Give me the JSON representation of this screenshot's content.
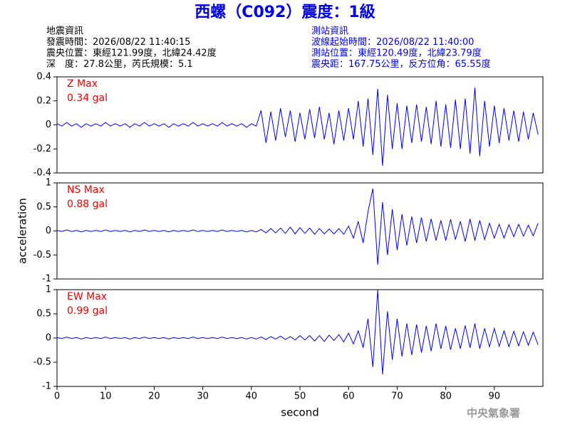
{
  "title": "西螺（C092）震度：1級",
  "event_info": [
    "地震資訊",
    "發震時間：2026/08/22 11:40:15",
    "震央位置：東經121.99度，北緯24.42度",
    "深　度：27.8公里，芮氏規模：5.1"
  ],
  "station_info": [
    "測站資訊",
    "波線起始時間：2026/08/22 11:40:00",
    "測站位置：東經120.49度，北緯23.79度",
    "震央距：167.75公里，反方位角：65.55度"
  ],
  "footer": "中央氣象署",
  "chart_data": [
    {
      "type": "line",
      "annotations": [
        "Z Max",
        "0.34 gal"
      ],
      "annotation_color": "#ee0000",
      "color": "#0000ee",
      "xlim": [
        0,
        100
      ],
      "ylim": [
        -0.4,
        0.4
      ],
      "yticks": [
        0.4,
        0.2,
        0,
        -0.2,
        -0.4
      ],
      "x": [
        0,
        1,
        2,
        3,
        4,
        5,
        6,
        7,
        8,
        9,
        10,
        11,
        12,
        13,
        14,
        15,
        16,
        17,
        18,
        19,
        20,
        21,
        22,
        23,
        24,
        25,
        26,
        27,
        28,
        29,
        30,
        31,
        32,
        33,
        34,
        35,
        36,
        37,
        38,
        39,
        40,
        41,
        42,
        43,
        44,
        45,
        46,
        47,
        48,
        49,
        50,
        51,
        52,
        53,
        54,
        55,
        56,
        57,
        58,
        59,
        60,
        61,
        62,
        63,
        64,
        65,
        66,
        67,
        68,
        69,
        70,
        71,
        72,
        73,
        74,
        75,
        76,
        77,
        78,
        79,
        80,
        81,
        82,
        83,
        84,
        85,
        86,
        87,
        88,
        89,
        90,
        91,
        92,
        93,
        94,
        95,
        96,
        97,
        98,
        99
      ],
      "values": [
        0.01,
        -0.01,
        0.02,
        -0.01,
        0.01,
        -0.02,
        0.01,
        -0.01,
        0.01,
        -0.01,
        0.02,
        -0.01,
        0.01,
        -0.01,
        0.01,
        -0.02,
        0.01,
        -0.01,
        0.02,
        -0.01,
        0.01,
        -0.01,
        0.01,
        -0.02,
        0.01,
        -0.01,
        0.01,
        -0.01,
        0.02,
        -0.01,
        0.01,
        -0.01,
        0.01,
        -0.01,
        0.02,
        -0.01,
        0.01,
        -0.01,
        0.01,
        -0.02,
        0.01,
        -0.01,
        0.12,
        -0.15,
        0.11,
        -0.13,
        0.14,
        -0.1,
        0.12,
        -0.14,
        0.1,
        -0.12,
        0.13,
        -0.11,
        0.15,
        -0.12,
        0.1,
        -0.16,
        0.12,
        -0.13,
        0.14,
        -0.12,
        0.2,
        -0.18,
        0.22,
        -0.25,
        0.3,
        -0.34,
        0.25,
        -0.2,
        0.18,
        -0.2,
        0.16,
        -0.15,
        0.17,
        -0.14,
        0.15,
        -0.16,
        0.2,
        -0.18,
        0.17,
        -0.19,
        0.21,
        -0.2,
        0.22,
        -0.24,
        0.31,
        -0.26,
        0.2,
        -0.18,
        0.16,
        -0.15,
        0.14,
        -0.13,
        0.12,
        -0.14,
        0.11,
        -0.12,
        0.1,
        -0.08
      ]
    },
    {
      "type": "line",
      "annotations": [
        "NS Max",
        "0.88 gal"
      ],
      "annotation_color": "#ee0000",
      "color": "#0000ee",
      "ylabel": "acceleration",
      "xlim": [
        0,
        100
      ],
      "ylim": [
        -1,
        1
      ],
      "yticks": [
        1,
        0.5,
        0,
        -0.5,
        -1
      ],
      "x": [
        0,
        1,
        2,
        3,
        4,
        5,
        6,
        7,
        8,
        9,
        10,
        11,
        12,
        13,
        14,
        15,
        16,
        17,
        18,
        19,
        20,
        21,
        22,
        23,
        24,
        25,
        26,
        27,
        28,
        29,
        30,
        31,
        32,
        33,
        34,
        35,
        36,
        37,
        38,
        39,
        40,
        41,
        42,
        43,
        44,
        45,
        46,
        47,
        48,
        49,
        50,
        51,
        52,
        53,
        54,
        55,
        56,
        57,
        58,
        59,
        60,
        61,
        62,
        63,
        64,
        65,
        66,
        67,
        68,
        69,
        70,
        71,
        72,
        73,
        74,
        75,
        76,
        77,
        78,
        79,
        80,
        81,
        82,
        83,
        84,
        85,
        86,
        87,
        88,
        89,
        90,
        91,
        92,
        93,
        94,
        95,
        96,
        97,
        98,
        99
      ],
      "values": [
        0.01,
        -0.01,
        0.02,
        -0.01,
        0.01,
        -0.02,
        0.01,
        -0.01,
        0.01,
        -0.01,
        0.02,
        -0.01,
        0.01,
        -0.01,
        0.01,
        -0.02,
        0.01,
        -0.01,
        0.02,
        -0.01,
        0.01,
        -0.01,
        0.01,
        -0.02,
        0.01,
        -0.01,
        0.01,
        -0.01,
        0.02,
        -0.01,
        0.01,
        -0.01,
        0.01,
        -0.01,
        0.02,
        -0.01,
        0.01,
        -0.01,
        0.01,
        -0.02,
        0.01,
        -0.02,
        0.03,
        -0.04,
        0.05,
        -0.04,
        0.06,
        -0.05,
        0.08,
        -0.06,
        0.07,
        -0.05,
        0.06,
        -0.07,
        0.05,
        -0.06,
        0.04,
        -0.06,
        0.05,
        -0.07,
        0.1,
        -0.15,
        0.2,
        -0.25,
        0.4,
        0.88,
        -0.7,
        0.6,
        -0.5,
        0.45,
        -0.4,
        0.35,
        -0.3,
        0.3,
        -0.25,
        0.28,
        -0.22,
        0.25,
        -0.2,
        0.22,
        -0.2,
        0.24,
        -0.18,
        0.2,
        -0.22,
        0.25,
        -0.2,
        0.22,
        -0.18,
        0.16,
        -0.15,
        0.14,
        -0.15,
        0.13,
        -0.12,
        0.14,
        -0.11,
        0.12,
        -0.1,
        0.16
      ]
    },
    {
      "type": "line",
      "annotations": [
        "EW Max",
        "0.99 gal"
      ],
      "annotation_color": "#ee0000",
      "color": "#0000ee",
      "xlabel": "second",
      "xlim": [
        0,
        100
      ],
      "xticks": [
        0,
        10,
        20,
        30,
        40,
        50,
        60,
        70,
        80,
        90
      ],
      "ylim": [
        -1,
        1
      ],
      "yticks": [
        1,
        0.5,
        0,
        -0.5,
        -1
      ],
      "x": [
        0,
        1,
        2,
        3,
        4,
        5,
        6,
        7,
        8,
        9,
        10,
        11,
        12,
        13,
        14,
        15,
        16,
        17,
        18,
        19,
        20,
        21,
        22,
        23,
        24,
        25,
        26,
        27,
        28,
        29,
        30,
        31,
        32,
        33,
        34,
        35,
        36,
        37,
        38,
        39,
        40,
        41,
        42,
        43,
        44,
        45,
        46,
        47,
        48,
        49,
        50,
        51,
        52,
        53,
        54,
        55,
        56,
        57,
        58,
        59,
        60,
        61,
        62,
        63,
        64,
        65,
        66,
        67,
        68,
        69,
        70,
        71,
        72,
        73,
        74,
        75,
        76,
        77,
        78,
        79,
        80,
        81,
        82,
        83,
        84,
        85,
        86,
        87,
        88,
        89,
        90,
        91,
        92,
        93,
        94,
        95,
        96,
        97,
        98,
        99
      ],
      "values": [
        0.01,
        -0.01,
        0.02,
        -0.01,
        0.01,
        -0.02,
        0.01,
        -0.01,
        0.01,
        -0.01,
        0.02,
        -0.01,
        0.01,
        -0.01,
        0.01,
        -0.02,
        0.01,
        -0.01,
        0.02,
        -0.01,
        0.01,
        -0.01,
        0.01,
        -0.02,
        0.01,
        -0.01,
        0.01,
        -0.01,
        0.02,
        -0.01,
        0.01,
        -0.01,
        0.01,
        -0.01,
        0.02,
        -0.01,
        0.01,
        -0.01,
        0.01,
        -0.02,
        0.01,
        -0.02,
        0.02,
        -0.03,
        0.03,
        -0.02,
        0.04,
        -0.03,
        0.03,
        -0.04,
        0.05,
        -0.04,
        0.05,
        -0.06,
        0.05,
        -0.07,
        0.06,
        -0.05,
        0.07,
        -0.08,
        0.1,
        -0.12,
        0.15,
        -0.2,
        0.4,
        -0.6,
        0.99,
        -0.75,
        0.55,
        -0.45,
        0.4,
        -0.38,
        0.3,
        -0.35,
        0.28,
        -0.3,
        0.25,
        -0.27,
        0.3,
        -0.22,
        0.25,
        -0.24,
        0.2,
        -0.22,
        0.26,
        -0.2,
        0.3,
        -0.22,
        0.2,
        -0.18,
        0.2,
        -0.17,
        0.15,
        -0.18,
        0.14,
        -0.16,
        0.13,
        -0.15,
        0.12,
        -0.14
      ]
    }
  ]
}
